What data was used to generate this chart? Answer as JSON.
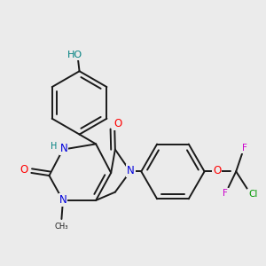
{
  "bg_color": "#ebebeb",
  "bond_color": "#1a1a1a",
  "bond_width": 1.4,
  "atom_colors": {
    "C": "#1a1a1a",
    "N": "#0000dd",
    "O": "#ff0000",
    "H": "#008080",
    "F": "#cc00cc",
    "Cl": "#009900"
  },
  "font_size": 7.5
}
